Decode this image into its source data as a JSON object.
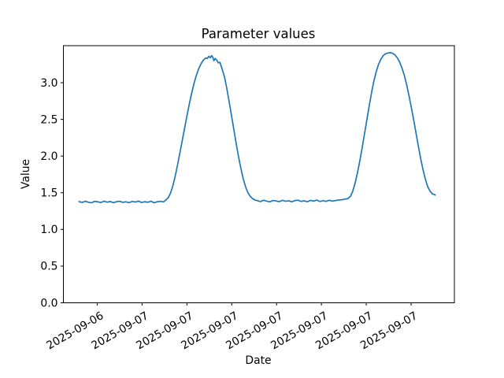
{
  "figure": {
    "background_color": "#ffffff"
  },
  "chart_data": {
    "type": "line",
    "title": "Parameter values",
    "xlabel": "Date",
    "ylabel": "Value",
    "line_color": "#1f77b4",
    "axes_color": "#000000",
    "grid": false,
    "legend": null,
    "xlim": [
      0,
      1
    ],
    "ylim": [
      0,
      3.505
    ],
    "x_ticks": [
      0.0865,
      0.2012,
      0.3159,
      0.4305,
      0.5452,
      0.6599,
      0.7746,
      0.8893
    ],
    "x_ticklabels": [
      "2025-09-06",
      "2025-09-07",
      "2025-09-07",
      "2025-09-07",
      "2025-09-07",
      "2025-09-07",
      "2025-09-07",
      "2025-09-07"
    ],
    "x_tick_rotation_deg": 30,
    "y_ticks": [
      0.0,
      0.5,
      1.0,
      1.5,
      2.0,
      2.5,
      3.0
    ],
    "y_ticklabels": [
      "0.0",
      "0.5",
      "1.0",
      "1.5",
      "2.0",
      "2.5",
      "3.0"
    ],
    "series": [
      {
        "name": "parameter-values-line",
        "x": [
          0.04,
          0.048,
          0.056,
          0.064,
          0.072,
          0.08,
          0.088,
          0.096,
          0.104,
          0.112,
          0.12,
          0.128,
          0.136,
          0.144,
          0.152,
          0.16,
          0.168,
          0.176,
          0.184,
          0.192,
          0.2,
          0.208,
          0.216,
          0.224,
          0.232,
          0.24,
          0.248,
          0.256,
          0.262,
          0.268,
          0.274,
          0.28,
          0.286,
          0.292,
          0.298,
          0.304,
          0.31,
          0.316,
          0.322,
          0.328,
          0.334,
          0.34,
          0.346,
          0.352,
          0.358,
          0.364,
          0.368,
          0.372,
          0.376,
          0.379,
          0.382,
          0.385,
          0.388,
          0.392,
          0.396,
          0.4,
          0.404,
          0.408,
          0.412,
          0.418,
          0.424,
          0.43,
          0.436,
          0.442,
          0.448,
          0.454,
          0.46,
          0.466,
          0.472,
          0.478,
          0.484,
          0.49,
          0.496,
          0.504,
          0.512,
          0.52,
          0.528,
          0.536,
          0.544,
          0.552,
          0.56,
          0.568,
          0.576,
          0.584,
          0.592,
          0.6,
          0.608,
          0.616,
          0.624,
          0.632,
          0.64,
          0.648,
          0.656,
          0.664,
          0.672,
          0.68,
          0.688,
          0.696,
          0.704,
          0.712,
          0.72,
          0.728,
          0.734,
          0.74,
          0.746,
          0.752,
          0.758,
          0.764,
          0.77,
          0.776,
          0.782,
          0.788,
          0.794,
          0.8,
          0.806,
          0.812,
          0.818,
          0.824,
          0.83,
          0.836,
          0.842,
          0.848,
          0.854,
          0.86,
          0.866,
          0.872,
          0.878,
          0.884,
          0.89,
          0.896,
          0.902,
          0.908,
          0.914,
          0.92,
          0.926,
          0.932,
          0.938,
          0.944,
          0.951
        ],
        "y": [
          1.38,
          1.368,
          1.385,
          1.371,
          1.363,
          1.383,
          1.377,
          1.366,
          1.386,
          1.372,
          1.381,
          1.364,
          1.379,
          1.384,
          1.369,
          1.376,
          1.365,
          1.382,
          1.373,
          1.387,
          1.367,
          1.378,
          1.37,
          1.385,
          1.364,
          1.377,
          1.383,
          1.376,
          1.4,
          1.432,
          1.495,
          1.595,
          1.727,
          1.88,
          2.045,
          2.212,
          2.38,
          2.548,
          2.707,
          2.856,
          2.99,
          3.1,
          3.19,
          3.258,
          3.308,
          3.338,
          3.33,
          3.36,
          3.34,
          3.37,
          3.35,
          3.3,
          3.33,
          3.31,
          3.27,
          3.28,
          3.22,
          3.15,
          3.08,
          2.92,
          2.74,
          2.55,
          2.36,
          2.17,
          1.99,
          1.83,
          1.69,
          1.58,
          1.5,
          1.45,
          1.42,
          1.4,
          1.392,
          1.38,
          1.398,
          1.385,
          1.376,
          1.395,
          1.388,
          1.379,
          1.397,
          1.384,
          1.391,
          1.377,
          1.393,
          1.399,
          1.382,
          1.39,
          1.378,
          1.396,
          1.386,
          1.4,
          1.381,
          1.392,
          1.383,
          1.398,
          1.386,
          1.394,
          1.4,
          1.405,
          1.412,
          1.422,
          1.45,
          1.52,
          1.63,
          1.77,
          1.93,
          2.11,
          2.3,
          2.49,
          2.68,
          2.86,
          3.02,
          3.15,
          3.25,
          3.32,
          3.37,
          3.395,
          3.405,
          3.41,
          3.4,
          3.38,
          3.34,
          3.28,
          3.2,
          3.1,
          2.97,
          2.82,
          2.66,
          2.49,
          2.31,
          2.13,
          1.96,
          1.81,
          1.68,
          1.58,
          1.52,
          1.483,
          1.47
        ]
      }
    ]
  }
}
